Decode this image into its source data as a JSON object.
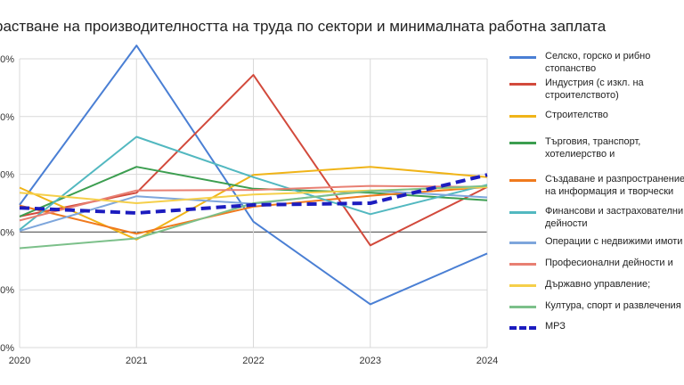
{
  "chart_data": {
    "type": "line",
    "title": "растване на производителността на труда по сектори и минималната работна заплата",
    "xlabel": "",
    "ylabel": "",
    "categories": [
      "2020",
      "2021",
      "2022",
      "2023",
      "2024"
    ],
    "y_tick_labels": [
      "0%",
      "0%",
      "0%",
      "0%",
      "0%",
      "0%"
    ],
    "grid": true,
    "legend_position": "right",
    "series": [
      {
        "name": "Селско, горско и рибно стопанство",
        "color": "#4a7fd4",
        "style": "solid",
        "values": [
          0.47,
          3.23,
          0.18,
          -1.25,
          -0.37
        ]
      },
      {
        "name": "Индустрия (с изкл. на строителството)",
        "color": "#d24a3c",
        "style": "solid",
        "values": [
          0.27,
          0.68,
          2.72,
          -0.23,
          0.78
        ]
      },
      {
        "name": "Строителство",
        "color": "#f0b418",
        "style": "solid",
        "values": [
          0.77,
          -0.13,
          0.99,
          1.13,
          0.95
        ]
      },
      {
        "name": "Търговия, транспорт, хотелиерство и",
        "color": "#3c9e50",
        "style": "solid",
        "values": [
          0.27,
          1.13,
          0.75,
          0.68,
          0.55
        ]
      },
      {
        "name": "Създаване и разпространение на информация и творчески",
        "color": "#f07a1e",
        "style": "solid",
        "values": [
          0.46,
          -0.03,
          0.44,
          0.63,
          0.78
        ]
      },
      {
        "name": "Финансови и застрахователни дейности",
        "color": "#52b8c0",
        "style": "solid",
        "values": [
          0.04,
          1.65,
          0.95,
          0.31,
          0.82
        ]
      },
      {
        "name": "Операции с недвижими имоти",
        "color": "#7ea6dc",
        "style": "solid",
        "values": [
          0.02,
          0.62,
          0.49,
          0.72,
          0.6
        ]
      },
      {
        "name": "Професионални дейности и",
        "color": "#e87f72",
        "style": "solid",
        "values": [
          0.2,
          0.72,
          0.73,
          0.8,
          0.78
        ]
      },
      {
        "name": "Държавно управление;",
        "color": "#f5cf4a",
        "style": "solid",
        "values": [
          0.68,
          0.5,
          0.65,
          0.72,
          0.78
        ]
      },
      {
        "name": "Култура, спорт и развлечения",
        "color": "#7cc08a",
        "style": "solid",
        "values": [
          -0.28,
          -0.11,
          0.5,
          0.71,
          0.8
        ]
      },
      {
        "name": "МРЗ",
        "color": "#1c1cbf",
        "style": "dashed",
        "values": [
          0.42,
          0.33,
          0.47,
          0.5,
          0.99
        ]
      }
    ]
  }
}
